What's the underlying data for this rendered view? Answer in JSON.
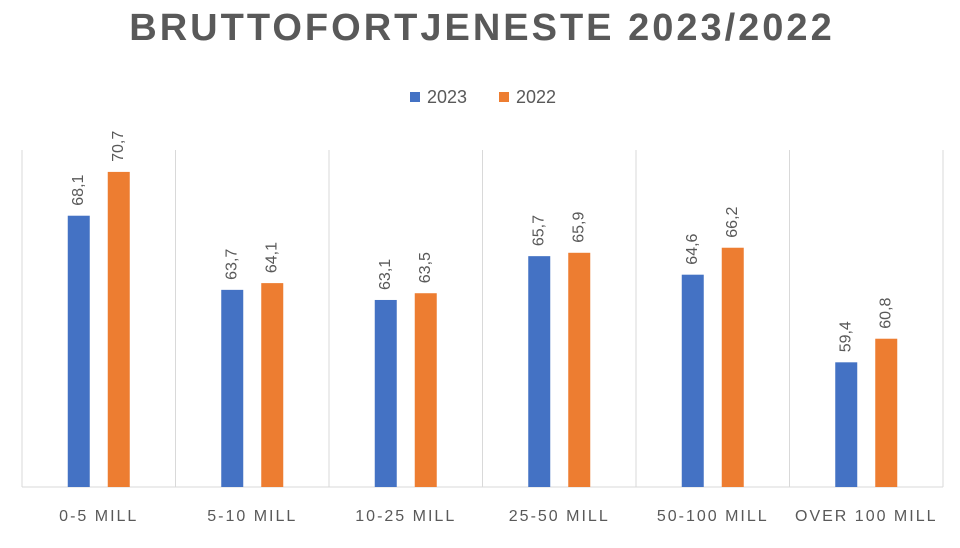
{
  "chart_data": {
    "type": "bar",
    "title": "BRUTTOFORTJENESTE 2023/2022",
    "categories": [
      "0-5 MILL",
      "5-10 MILL",
      "10-25 MILL",
      "25-50 MILL",
      "50-100 MILL",
      "OVER 100 MILL"
    ],
    "series": [
      {
        "name": "2023",
        "color": "#4472c4",
        "values": [
          68.1,
          63.7,
          63.1,
          65.7,
          64.6,
          59.4
        ],
        "value_labels": [
          "68,1",
          "63,7",
          "63,1",
          "65,7",
          "64,6",
          "59,4"
        ]
      },
      {
        "name": "2022",
        "color": "#ed7d31",
        "values": [
          70.7,
          64.1,
          63.5,
          65.9,
          66.2,
          60.8
        ],
        "value_labels": [
          "70,7",
          "64,1",
          "63,5",
          "65,9",
          "66,2",
          "60,8"
        ]
      }
    ],
    "ylim": [
      52,
      72
    ],
    "legend": "top"
  }
}
